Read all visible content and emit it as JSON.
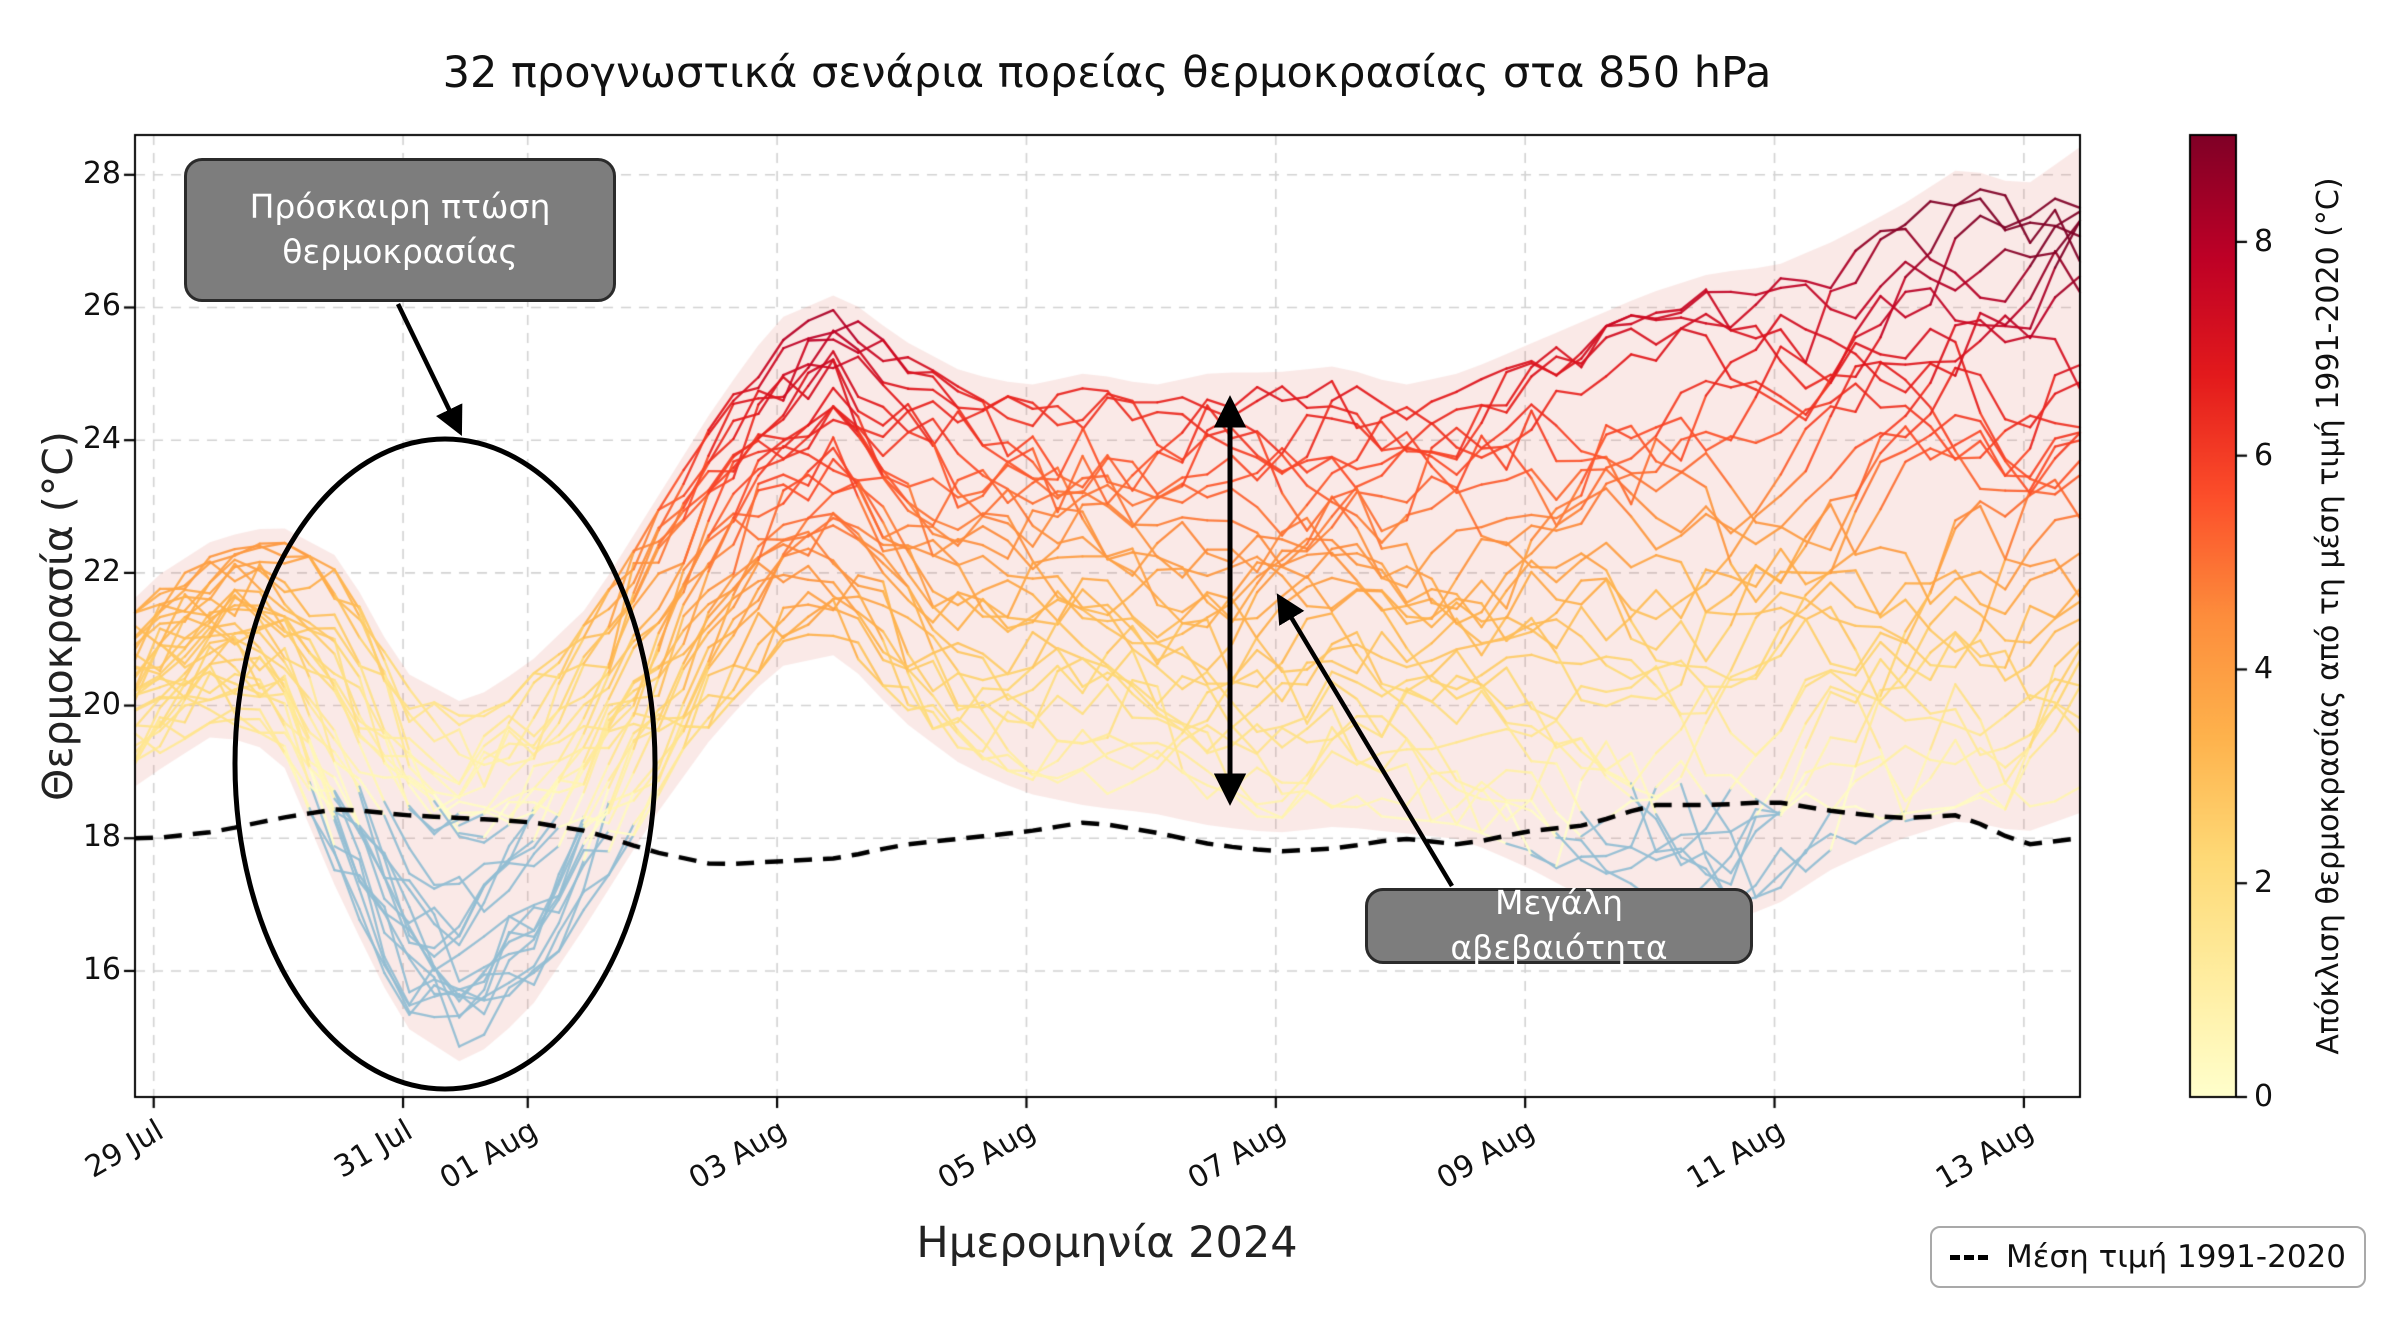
{
  "title": "32 προγνωστικά σενάρια πορείας θερμοκρασίας στα 850 hPa",
  "chart_data": {
    "type": "line",
    "title": "32 προγνωστικά σενάρια πορείας θερμοκρασίας στα 850 hPa",
    "xlabel": "Ημερομηνία 2024",
    "ylabel": "Θερμοκρασία (°C)",
    "ylim": [
      14.1,
      28.6
    ],
    "xlim_days": [
      -0.15,
      15.45
    ],
    "n_members": 32,
    "grid": true,
    "x_tick_days": [
      0,
      2,
      3,
      5,
      7,
      9,
      11,
      13,
      15
    ],
    "x_tick_labels": [
      "29 Jul",
      "31 Jul",
      "01 Aug",
      "03 Aug",
      "05 Aug",
      "07 Aug",
      "09 Aug",
      "11 Aug",
      "13 Aug"
    ],
    "y_ticks": [
      16,
      18,
      20,
      22,
      24,
      26,
      28
    ],
    "t_days": [
      -0.15,
      0,
      0.5,
      1,
      1.5,
      2,
      2.5,
      3,
      3.5,
      4,
      4.5,
      5,
      5.5,
      6,
      6.5,
      7,
      7.5,
      8,
      8.5,
      9,
      9.5,
      10,
      10.5,
      11,
      11.5,
      12,
      12.5,
      13,
      13.5,
      14,
      14.5,
      15,
      15.45
    ],
    "envelope_lo": [
      19.0,
      19.2,
      19.8,
      19.5,
      17.3,
      15.4,
      14.8,
      15.6,
      17.0,
      18.5,
      19.8,
      20.8,
      21.0,
      20.0,
      19.3,
      18.9,
      18.7,
      18.6,
      18.4,
      18.3,
      18.4,
      18.3,
      18.2,
      17.8,
      17.3,
      17.0,
      16.9,
      17.2,
      17.8,
      18.2,
      18.5,
      18.3,
      18.6
    ],
    "envelope_hi": [
      21.4,
      21.7,
      22.3,
      22.5,
      22.0,
      20.3,
      19.8,
      20.4,
      21.3,
      22.8,
      24.3,
      25.6,
      26.0,
      25.3,
      24.8,
      24.6,
      24.8,
      24.6,
      24.8,
      24.8,
      24.9,
      24.6,
      24.8,
      25.2,
      25.6,
      26.0,
      26.3,
      26.4,
      26.8,
      27.3,
      27.9,
      27.6,
      28.2
    ],
    "ensemble_median": [
      20.2,
      20.4,
      21.0,
      21.0,
      19.7,
      17.9,
      17.3,
      18.0,
      19.2,
      20.6,
      22.0,
      23.2,
      23.6,
      22.6,
      21.9,
      21.6,
      21.7,
      21.5,
      21.6,
      21.5,
      21.7,
      21.4,
      21.5,
      21.6,
      21.7,
      21.8,
      22.0,
      22.1,
      22.3,
      22.6,
      23.0,
      22.8,
      23.2
    ],
    "climatology_1991_2020": [
      18.0,
      18.0,
      18.1,
      18.3,
      18.45,
      18.35,
      18.3,
      18.25,
      18.1,
      17.8,
      17.6,
      17.65,
      17.7,
      17.9,
      18.0,
      18.1,
      18.25,
      18.1,
      17.9,
      17.8,
      17.85,
      18.0,
      17.9,
      18.1,
      18.2,
      18.5,
      18.5,
      18.55,
      18.4,
      18.3,
      18.35,
      17.9,
      18.0
    ],
    "envelope_color": "rgba(224, 122, 110, 0.17)",
    "climatology_color": "#000000",
    "grid_color": "#d2d2d2",
    "colorbar": {
      "label": "Απόκλιση θερμοκρασίας από τη μέση τιμή 1991-2020 (°C)",
      "ticks": [
        0,
        2,
        4,
        6,
        8
      ],
      "range": [
        0,
        9
      ],
      "colormap_stops": [
        "#ffffcc",
        "#ffeda0",
        "#fed976",
        "#feb24c",
        "#fd8d3c",
        "#fc4e2a",
        "#e31a1c",
        "#bd0026",
        "#800026"
      ],
      "under_color": "#92bdd3"
    }
  },
  "annotations": {
    "temp_drop": {
      "text": "Πρόσκαιρη πτώση θερμοκρασίας"
    },
    "uncertainty": {
      "text": "Μεγάλη αβεβαιότητα"
    }
  },
  "legend": {
    "label": "Μέση τιμή 1991-2020"
  }
}
